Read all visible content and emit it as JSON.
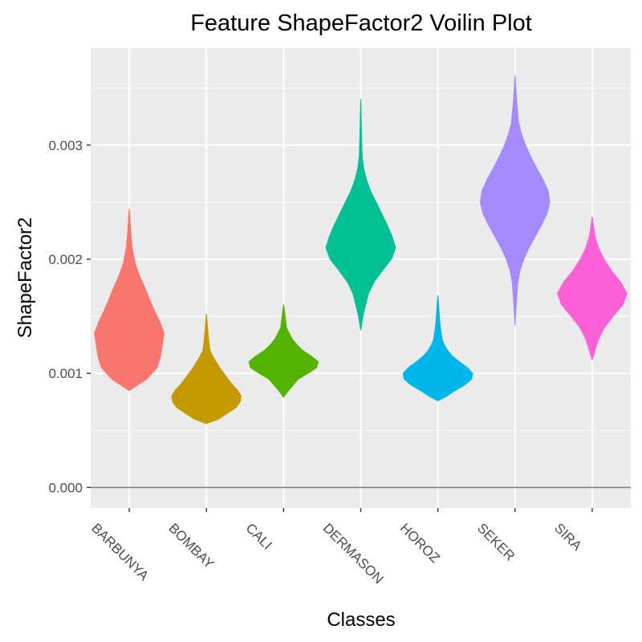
{
  "chart_data": {
    "type": "violin",
    "title": "Feature ShapeFactor2 Voilin Plot",
    "xlabel": "Classes",
    "ylabel": "ShapeFactor2",
    "ylim": [
      -0.00018,
      0.00385
    ],
    "yticks": [
      0.0,
      0.001,
      0.002,
      0.003
    ],
    "ytick_labels": [
      "0.000",
      "0.001",
      "0.002",
      "0.003"
    ],
    "hline": 0,
    "grid": true,
    "legend": "none",
    "categories": [
      "BARBUNYA",
      "BOMBAY",
      "CALI",
      "DERMASON",
      "HOROZ",
      "SEKER",
      "SIRA"
    ],
    "series": [
      {
        "category": "BARBUNYA",
        "color": "#F8766D",
        "y": [
          0.00085,
          0.00095,
          0.00105,
          0.00115,
          0.00125,
          0.00135,
          0.00145,
          0.00155,
          0.00165,
          0.00175,
          0.00185,
          0.00195,
          0.0021,
          0.00225,
          0.00244
        ],
        "half": [
          0.0,
          0.5,
          0.8,
          0.9,
          0.95,
          1.0,
          0.88,
          0.72,
          0.58,
          0.45,
          0.3,
          0.18,
          0.08,
          0.04,
          0.0
        ]
      },
      {
        "category": "BOMBAY",
        "color": "#C49A00",
        "y": [
          0.00056,
          0.0006,
          0.00065,
          0.0007,
          0.00075,
          0.0008,
          0.00085,
          0.0009,
          0.00095,
          0.001,
          0.00105,
          0.0011,
          0.00115,
          0.0012,
          0.0013,
          0.0014,
          0.00152
        ],
        "half": [
          0.0,
          0.35,
          0.6,
          0.85,
          0.97,
          1.0,
          0.9,
          0.75,
          0.62,
          0.5,
          0.38,
          0.28,
          0.18,
          0.1,
          0.06,
          0.03,
          0.0
        ]
      },
      {
        "category": "CALI",
        "color": "#53B400",
        "y": [
          0.00079,
          0.00085,
          0.0009,
          0.00095,
          0.001,
          0.00105,
          0.0011,
          0.00115,
          0.0012,
          0.00125,
          0.0013,
          0.00135,
          0.0014,
          0.0015,
          0.0016
        ],
        "half": [
          0.0,
          0.14,
          0.28,
          0.42,
          0.7,
          0.95,
          1.0,
          0.8,
          0.55,
          0.38,
          0.25,
          0.16,
          0.08,
          0.04,
          0.0
        ]
      },
      {
        "category": "DERMASON",
        "color": "#00C094",
        "y": [
          0.00138,
          0.0015,
          0.0016,
          0.0017,
          0.0018,
          0.0019,
          0.002,
          0.0021,
          0.0022,
          0.0023,
          0.0024,
          0.0025,
          0.0026,
          0.0027,
          0.0028,
          0.0029,
          0.0031,
          0.0034
        ],
        "half": [
          0.0,
          0.06,
          0.14,
          0.22,
          0.38,
          0.62,
          0.88,
          1.0,
          0.9,
          0.76,
          0.6,
          0.44,
          0.28,
          0.16,
          0.08,
          0.04,
          0.02,
          0.0
        ]
      },
      {
        "category": "HOROZ",
        "color": "#00B6EB",
        "y": [
          0.00076,
          0.0008,
          0.00085,
          0.0009,
          0.00095,
          0.001,
          0.00105,
          0.0011,
          0.00115,
          0.0012,
          0.00125,
          0.0013,
          0.0014,
          0.0015,
          0.0016,
          0.00168
        ],
        "half": [
          0.0,
          0.25,
          0.5,
          0.78,
          0.97,
          1.0,
          0.85,
          0.62,
          0.42,
          0.28,
          0.18,
          0.12,
          0.07,
          0.04,
          0.02,
          0.0
        ]
      },
      {
        "category": "SEKER",
        "color": "#A58AFF",
        "y": [
          0.00142,
          0.0016,
          0.0018,
          0.0019,
          0.002,
          0.0021,
          0.0022,
          0.0023,
          0.0024,
          0.0025,
          0.0026,
          0.0027,
          0.0028,
          0.0029,
          0.003,
          0.0031,
          0.0032,
          0.0034,
          0.00361
        ],
        "half": [
          0.0,
          0.03,
          0.08,
          0.14,
          0.25,
          0.4,
          0.58,
          0.76,
          0.92,
          1.0,
          0.95,
          0.8,
          0.62,
          0.45,
          0.3,
          0.18,
          0.1,
          0.04,
          0.0
        ]
      },
      {
        "category": "SIRA",
        "color": "#FB61D7",
        "y": [
          0.00112,
          0.0012,
          0.0013,
          0.0014,
          0.0015,
          0.0016,
          0.0017,
          0.0018,
          0.0019,
          0.002,
          0.0021,
          0.0022,
          0.0023,
          0.00237
        ],
        "half": [
          0.0,
          0.08,
          0.18,
          0.35,
          0.6,
          0.88,
          1.0,
          0.82,
          0.55,
          0.34,
          0.18,
          0.08,
          0.03,
          0.0
        ]
      }
    ]
  }
}
